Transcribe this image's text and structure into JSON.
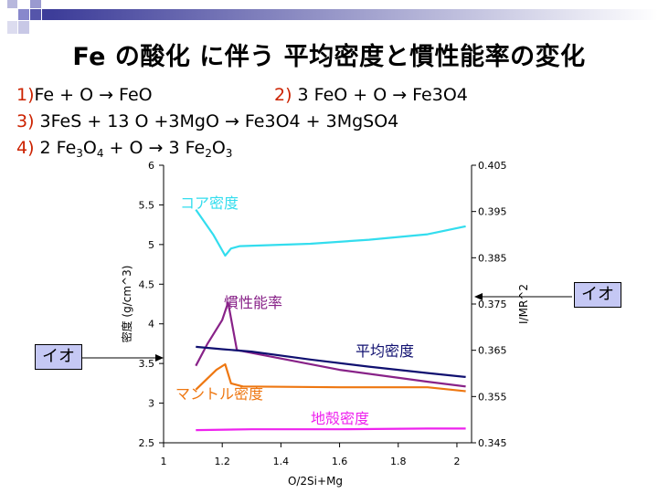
{
  "slide": {
    "title": "Fe の酸化 に伴う 平均密度と慣性能率の変化",
    "equations": {
      "eq1_num": "1)",
      "eq1_text": "Fe + O → FeO",
      "eq2_num": "2)",
      "eq2_text": " 3 FeO + O → Fe3O4",
      "eq3_num": "3)",
      "eq3_text": " 3FeS + 13 O +3MgO → Fe3O4 + 3MgSO4",
      "eq4_num": "4)",
      "eq4_a": " 2 Fe",
      "eq4_s1": "3",
      "eq4_b": "O",
      "eq4_s2": "4",
      "eq4_c": " + O → 3 Fe",
      "eq4_s3": "2",
      "eq4_d": "O",
      "eq4_s4": "3"
    },
    "callout_left": "イオ",
    "callout_right": "イオ"
  },
  "chart_data": {
    "type": "line",
    "title": "",
    "xlabel": "O/2Si+Mg",
    "ylabel": "密度 (g/cm^3)",
    "y2label": "I/MR^2",
    "xlim": [
      1,
      2.05
    ],
    "ylim": [
      2.5,
      6
    ],
    "y2lim": [
      0.345,
      0.405
    ],
    "x_ticks": [
      "1",
      "1.2",
      "1.4",
      "1.6",
      "1.8",
      "2"
    ],
    "y_ticks": [
      "2.5",
      "3",
      "3.5",
      "4",
      "4.5",
      "5",
      "5.5",
      "6"
    ],
    "y2_ticks": [
      "0.345",
      "0.355",
      "0.365",
      "0.375",
      "0.385",
      "0.395",
      "0.405"
    ],
    "grid": false,
    "colors": {
      "core": "#33ddee",
      "moment": "#882288",
      "mean": "#101070",
      "mantle": "#ee7711",
      "crust": "#ee22ee"
    },
    "series": [
      {
        "name": "コア密度",
        "axis": "left",
        "color": "#33ddee",
        "x": [
          1.11,
          1.17,
          1.21,
          1.23,
          1.26,
          1.5,
          1.7,
          1.9,
          2.03
        ],
        "y": [
          5.44,
          5.12,
          4.86,
          4.95,
          4.98,
          5.01,
          5.06,
          5.13,
          5.23
        ]
      },
      {
        "name": "慣性能率",
        "axis": "left",
        "color": "#882288",
        "x": [
          1.11,
          1.15,
          1.2,
          1.22,
          1.25,
          1.6,
          1.9,
          2.03
        ],
        "y": [
          3.47,
          3.75,
          4.05,
          4.27,
          3.67,
          3.42,
          3.27,
          3.21
        ]
      },
      {
        "name": "平均密度",
        "axis": "left",
        "color": "#101070",
        "x": [
          1.11,
          1.2,
          1.3,
          1.5,
          1.7,
          1.9,
          2.03
        ],
        "y": [
          3.71,
          3.68,
          3.65,
          3.55,
          3.46,
          3.38,
          3.33
        ]
      },
      {
        "name": "マントル密度",
        "axis": "left",
        "color": "#ee7711",
        "x": [
          1.11,
          1.18,
          1.21,
          1.23,
          1.27,
          1.6,
          1.9,
          2.03
        ],
        "y": [
          3.17,
          3.42,
          3.49,
          3.25,
          3.21,
          3.2,
          3.2,
          3.15
        ]
      },
      {
        "name": "地殻密度",
        "axis": "left",
        "color": "#ee22ee",
        "x": [
          1.11,
          1.3,
          1.6,
          1.9,
          2.03
        ],
        "y": [
          2.66,
          2.67,
          2.67,
          2.68,
          2.68
        ]
      }
    ]
  }
}
